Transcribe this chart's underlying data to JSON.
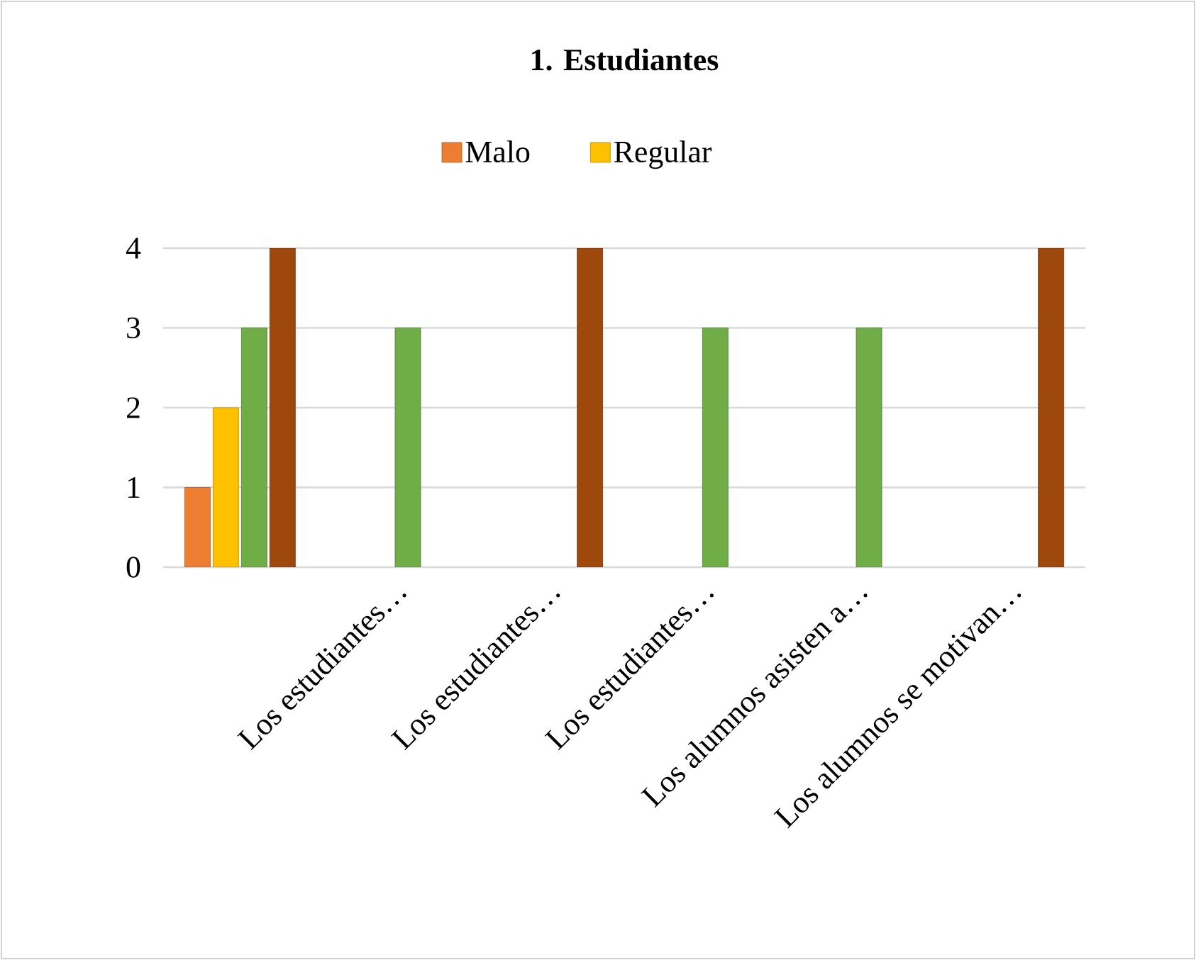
{
  "chart_data": {
    "type": "bar",
    "title": "1. Estudiantes",
    "categories": [
      null,
      "Los estudiantes…",
      "Los estudiantes…",
      "Los estudiantes…",
      "Los alumnos asisten a…",
      "Los alumnos se motivan…"
    ],
    "series": [
      {
        "name": "Malo",
        "color": "#ed7d31",
        "values": [
          1,
          null,
          null,
          null,
          null,
          null
        ]
      },
      {
        "name": "Regular",
        "color": "#ffc000",
        "values": [
          2,
          null,
          null,
          null,
          null,
          null
        ]
      },
      {
        "color": "#70ad47",
        "values": [
          3,
          3,
          null,
          3,
          3,
          null
        ]
      },
      {
        "color": "#9e480e",
        "values": [
          4,
          null,
          4,
          null,
          null,
          4
        ]
      }
    ],
    "ylim": [
      0,
      4
    ],
    "yticks": [
      0,
      1,
      2,
      3,
      4
    ],
    "grid": "y",
    "legend": "top"
  }
}
